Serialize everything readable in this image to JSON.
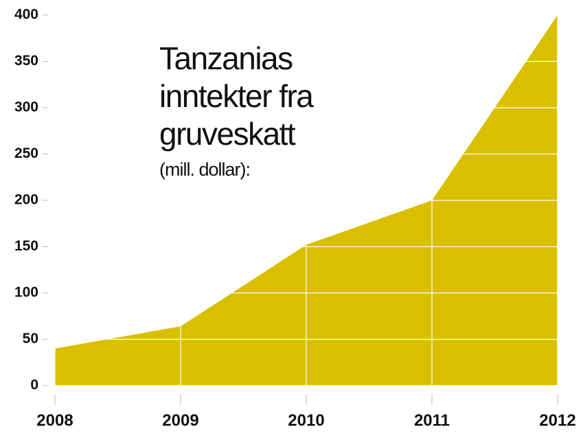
{
  "chart_data": {
    "type": "area",
    "title": "Tanzanias inntekter fra gruveskatt",
    "subtitle": "(mill. dollar):",
    "categories": [
      "2008",
      "2009",
      "2010",
      "2011",
      "2012"
    ],
    "values": [
      40,
      64,
      152,
      200,
      400
    ],
    "color": "#d9bf00",
    "ylim": [
      0,
      400
    ],
    "yticks": [
      0,
      50,
      100,
      150,
      200,
      250,
      300,
      350,
      400
    ],
    "grid": true
  }
}
